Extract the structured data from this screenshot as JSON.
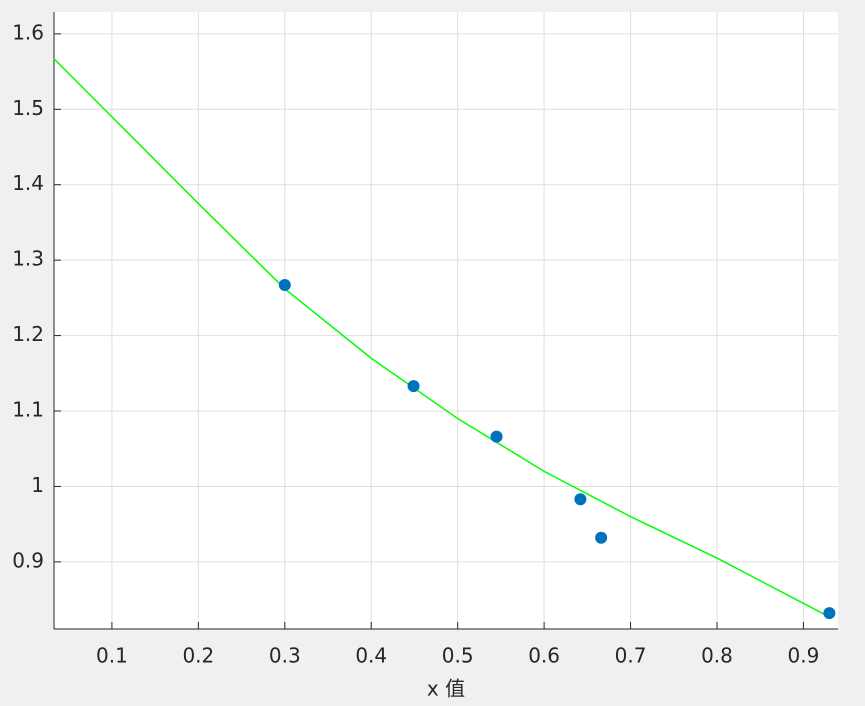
{
  "chart_data": {
    "type": "scatter",
    "x_label": "x 值",
    "xlim": [
      0.033,
      0.94
    ],
    "ylim": [
      0.811,
      1.629
    ],
    "xticks": [
      0.1,
      0.2,
      0.3,
      0.4,
      0.5,
      0.6,
      0.7,
      0.8,
      0.9
    ],
    "yticks": [
      0.9,
      1,
      1.1,
      1.2,
      1.3,
      1.4,
      1.5,
      1.6
    ],
    "grid": true,
    "series": [
      {
        "type": "scatter",
        "color": "#0072bd",
        "x": [
          0.3,
          0.449,
          0.545,
          0.642,
          0.666,
          0.93
        ],
        "values": [
          1.267,
          1.133,
          1.066,
          0.983,
          0.932,
          0.832
        ]
      },
      {
        "type": "line",
        "color": "#00ff00",
        "x": [
          0.033,
          0.1,
          0.2,
          0.3,
          0.4,
          0.5,
          0.6,
          0.7,
          0.8,
          0.93
        ],
        "values": [
          1.567,
          1.49,
          1.375,
          1.262,
          1.17,
          1.09,
          1.02,
          0.96,
          0.905,
          0.827
        ]
      }
    ]
  }
}
